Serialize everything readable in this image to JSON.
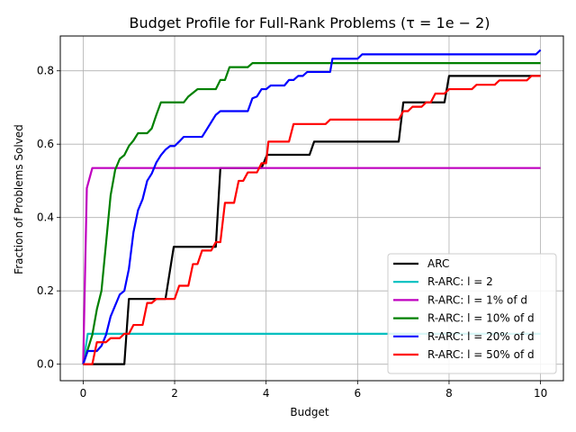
{
  "chart_data": {
    "type": "line",
    "title": "Budget Profile for Full-Rank Problems (τ = 1e − 2)",
    "xlabel": "Budget",
    "ylabel": "Fraction of Problems Solved",
    "xlim": [
      -0.5,
      10.5
    ],
    "ylim": [
      -0.045,
      0.895
    ],
    "xticks": [
      0,
      2,
      4,
      6,
      8,
      10
    ],
    "yticks": [
      0.0,
      0.2,
      0.4,
      0.6,
      0.8
    ],
    "xtick_labels": [
      "0",
      "2",
      "4",
      "6",
      "8",
      "10"
    ],
    "ytick_labels": [
      "0.0",
      "0.2",
      "0.4",
      "0.6",
      "0.8"
    ],
    "grid": true,
    "legend_position": "lower-right",
    "series": [
      {
        "name": "ARC",
        "color": "#000000",
        "points": [
          [
            0,
            0
          ],
          [
            0.1,
            0
          ],
          [
            0.9,
            0
          ],
          [
            1.0,
            0.178
          ],
          [
            1.8,
            0.178
          ],
          [
            1.98,
            0.32
          ],
          [
            2.9,
            0.32
          ],
          [
            3.0,
            0.535
          ],
          [
            3.9,
            0.535
          ],
          [
            4.02,
            0.571
          ],
          [
            4.95,
            0.571
          ],
          [
            5.05,
            0.607
          ],
          [
            6.9,
            0.607
          ],
          [
            7.0,
            0.714
          ],
          [
            7.9,
            0.714
          ],
          [
            8.0,
            0.786
          ],
          [
            10.0,
            0.786
          ]
        ]
      },
      {
        "name": "R-ARC: l = 2",
        "color": "#00bfbf",
        "points": [
          [
            0,
            0
          ],
          [
            0.1,
            0.083
          ],
          [
            10.0,
            0.083
          ]
        ]
      },
      {
        "name": "R-ARC: l = 1% of d",
        "color": "#bf00bf",
        "points": [
          [
            0,
            0
          ],
          [
            0.08,
            0.48
          ],
          [
            0.2,
            0.535
          ],
          [
            10.0,
            0.535
          ]
        ]
      },
      {
        "name": "R-ARC: l = 10% of d",
        "color": "#008000",
        "points": [
          [
            0,
            0
          ],
          [
            0.1,
            0.04
          ],
          [
            0.2,
            0.08
          ],
          [
            0.3,
            0.15
          ],
          [
            0.4,
            0.2
          ],
          [
            0.5,
            0.33
          ],
          [
            0.6,
            0.46
          ],
          [
            0.7,
            0.53
          ],
          [
            0.8,
            0.56
          ],
          [
            0.9,
            0.57
          ],
          [
            1.0,
            0.595
          ],
          [
            1.1,
            0.61
          ],
          [
            1.2,
            0.63
          ],
          [
            1.4,
            0.63
          ],
          [
            1.5,
            0.643
          ],
          [
            1.6,
            0.68
          ],
          [
            1.7,
            0.714
          ],
          [
            2.2,
            0.714
          ],
          [
            2.3,
            0.73
          ],
          [
            2.5,
            0.75
          ],
          [
            2.9,
            0.75
          ],
          [
            3.0,
            0.775
          ],
          [
            3.1,
            0.775
          ],
          [
            3.2,
            0.81
          ],
          [
            3.6,
            0.81
          ],
          [
            3.7,
            0.821
          ],
          [
            10.0,
            0.821
          ]
        ]
      },
      {
        "name": "R-ARC: l = 20% of d",
        "color": "#0000ff",
        "points": [
          [
            0,
            0
          ],
          [
            0.1,
            0.036
          ],
          [
            0.3,
            0.036
          ],
          [
            0.4,
            0.05
          ],
          [
            0.5,
            0.08
          ],
          [
            0.6,
            0.13
          ],
          [
            0.7,
            0.16
          ],
          [
            0.8,
            0.19
          ],
          [
            0.9,
            0.2
          ],
          [
            1.0,
            0.26
          ],
          [
            1.1,
            0.36
          ],
          [
            1.2,
            0.42
          ],
          [
            1.3,
            0.45
          ],
          [
            1.4,
            0.5
          ],
          [
            1.5,
            0.52
          ],
          [
            1.6,
            0.55
          ],
          [
            1.7,
            0.57
          ],
          [
            1.8,
            0.585
          ],
          [
            1.9,
            0.595
          ],
          [
            2.0,
            0.595
          ],
          [
            2.1,
            0.607
          ],
          [
            2.2,
            0.62
          ],
          [
            2.6,
            0.62
          ],
          [
            2.7,
            0.64
          ],
          [
            2.8,
            0.66
          ],
          [
            2.9,
            0.68
          ],
          [
            3.0,
            0.69
          ],
          [
            3.6,
            0.69
          ],
          [
            3.7,
            0.725
          ],
          [
            3.8,
            0.73
          ],
          [
            3.9,
            0.75
          ],
          [
            4.0,
            0.75
          ],
          [
            4.1,
            0.76
          ],
          [
            4.4,
            0.76
          ],
          [
            4.5,
            0.775
          ],
          [
            4.6,
            0.775
          ],
          [
            4.7,
            0.786
          ],
          [
            4.8,
            0.786
          ],
          [
            4.9,
            0.797
          ],
          [
            5.4,
            0.797
          ],
          [
            5.45,
            0.833
          ],
          [
            6.0,
            0.833
          ],
          [
            6.1,
            0.845
          ],
          [
            9.9,
            0.845
          ],
          [
            10.0,
            0.857
          ]
        ]
      },
      {
        "name": "R-ARC: l = 50% of d",
        "color": "#ff0000",
        "points": [
          [
            0,
            0
          ],
          [
            0.2,
            0
          ],
          [
            0.3,
            0.06
          ],
          [
            0.5,
            0.06
          ],
          [
            0.6,
            0.071
          ],
          [
            0.8,
            0.071
          ],
          [
            0.9,
            0.083
          ],
          [
            1.0,
            0.083
          ],
          [
            1.1,
            0.107
          ],
          [
            1.3,
            0.107
          ],
          [
            1.4,
            0.167
          ],
          [
            1.5,
            0.167
          ],
          [
            1.6,
            0.178
          ],
          [
            2.0,
            0.178
          ],
          [
            2.1,
            0.214
          ],
          [
            2.3,
            0.214
          ],
          [
            2.4,
            0.273
          ],
          [
            2.5,
            0.273
          ],
          [
            2.6,
            0.31
          ],
          [
            2.8,
            0.31
          ],
          [
            2.9,
            0.333
          ],
          [
            3.0,
            0.333
          ],
          [
            3.1,
            0.44
          ],
          [
            3.3,
            0.44
          ],
          [
            3.4,
            0.5
          ],
          [
            3.5,
            0.5
          ],
          [
            3.6,
            0.523
          ],
          [
            3.8,
            0.523
          ],
          [
            3.9,
            0.548
          ],
          [
            4.0,
            0.548
          ],
          [
            4.05,
            0.607
          ],
          [
            4.5,
            0.607
          ],
          [
            4.6,
            0.655
          ],
          [
            5.3,
            0.655
          ],
          [
            5.4,
            0.667
          ],
          [
            6.9,
            0.667
          ],
          [
            7.0,
            0.69
          ],
          [
            7.1,
            0.69
          ],
          [
            7.2,
            0.702
          ],
          [
            7.4,
            0.702
          ],
          [
            7.5,
            0.714
          ],
          [
            7.6,
            0.714
          ],
          [
            7.7,
            0.738
          ],
          [
            7.9,
            0.738
          ],
          [
            8.0,
            0.75
          ],
          [
            8.5,
            0.75
          ],
          [
            8.6,
            0.762
          ],
          [
            9.0,
            0.762
          ],
          [
            9.1,
            0.774
          ],
          [
            9.7,
            0.774
          ],
          [
            9.8,
            0.786
          ],
          [
            10.0,
            0.786
          ]
        ]
      }
    ]
  }
}
